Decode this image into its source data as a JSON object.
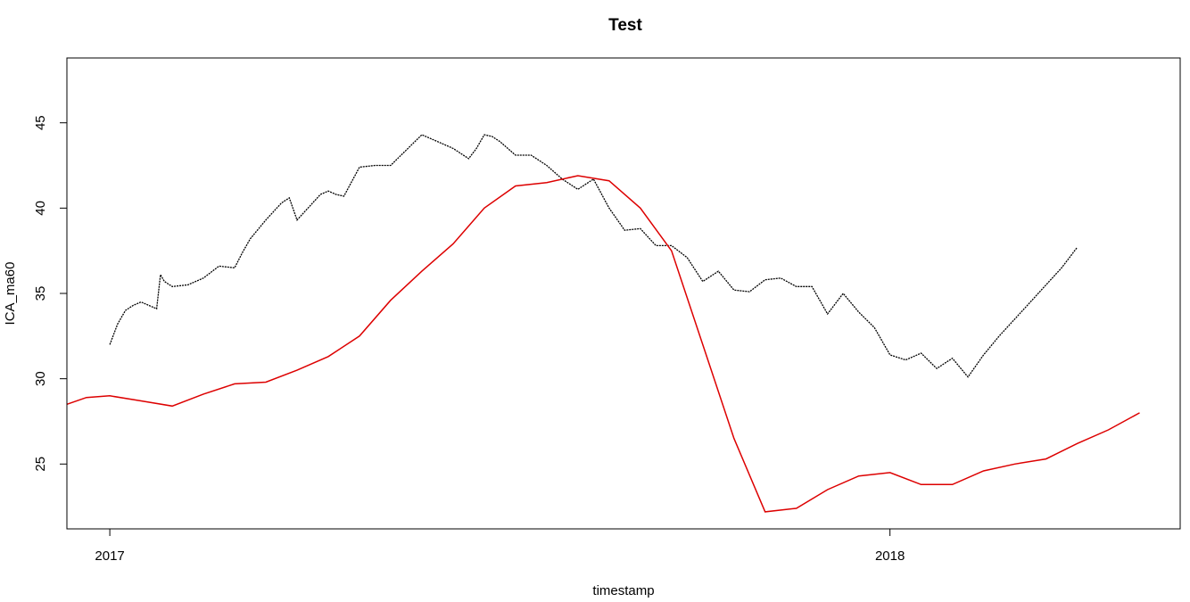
{
  "chart_data": {
    "type": "line",
    "title": "Test",
    "xlabel": "timestamp",
    "ylabel": "ICA_ma60",
    "x_ticks": [
      "2017",
      "2018"
    ],
    "x_tick_values": [
      2017.0,
      2018.0
    ],
    "y_ticks": [
      "25",
      "30",
      "35",
      "40",
      "45"
    ],
    "y_tick_values": [
      25,
      30,
      35,
      40,
      45
    ],
    "xlim": [
      2016.945,
      2018.372
    ],
    "ylim": [
      21.2,
      48.8
    ],
    "grid": false,
    "legend": "none",
    "series": [
      {
        "color": "#000000",
        "style": "dotted",
        "x": [
          2017.0,
          2017.01,
          2017.02,
          2017.03,
          2017.04,
          2017.05,
          2017.06,
          2017.065,
          2017.07,
          2017.08,
          2017.1,
          2017.12,
          2017.14,
          2017.16,
          2017.17,
          2017.18,
          2017.2,
          2017.22,
          2017.23,
          2017.24,
          2017.25,
          2017.26,
          2017.27,
          2017.28,
          2017.29,
          2017.3,
          2017.32,
          2017.34,
          2017.36,
          2017.38,
          2017.4,
          2017.42,
          2017.44,
          2017.46,
          2017.47,
          2017.48,
          2017.49,
          2017.5,
          2017.52,
          2017.54,
          2017.56,
          2017.58,
          2017.6,
          2017.62,
          2017.64,
          2017.66,
          2017.68,
          2017.7,
          2017.72,
          2017.74,
          2017.76,
          2017.78,
          2017.8,
          2017.82,
          2017.84,
          2017.86,
          2017.88,
          2017.9,
          2017.92,
          2017.94,
          2017.96,
          2017.98,
          2018.0,
          2018.02,
          2018.04,
          2018.06,
          2018.08,
          2018.1,
          2018.12,
          2018.14,
          2018.16,
          2018.18,
          2018.2,
          2018.22,
          2018.24
        ],
        "y": [
          32.0,
          33.2,
          34.0,
          34.3,
          34.5,
          34.3,
          34.1,
          36.1,
          35.7,
          35.4,
          35.5,
          35.9,
          36.6,
          36.5,
          37.4,
          38.2,
          39.3,
          40.3,
          40.6,
          39.3,
          39.8,
          40.3,
          40.8,
          41.0,
          40.8,
          40.7,
          42.4,
          42.5,
          42.5,
          43.4,
          44.3,
          43.9,
          43.5,
          42.9,
          43.5,
          44.3,
          44.2,
          43.9,
          43.1,
          43.1,
          42.5,
          41.7,
          41.1,
          41.7,
          40.0,
          38.7,
          38.8,
          37.8,
          37.8,
          37.1,
          35.7,
          36.3,
          35.2,
          35.1,
          35.8,
          35.9,
          35.4,
          35.4,
          33.8,
          35.0,
          33.9,
          33.0,
          31.4,
          31.1,
          31.5,
          30.6,
          31.2,
          30.1,
          31.4,
          32.5,
          33.5,
          34.5,
          35.5,
          36.5,
          37.7
        ]
      },
      {
        "color": "#dd0000",
        "style": "solid",
        "x": [
          2016.945,
          2016.97,
          2017.0,
          2017.04,
          2017.08,
          2017.12,
          2017.16,
          2017.2,
          2017.24,
          2017.28,
          2017.32,
          2017.36,
          2017.4,
          2017.44,
          2017.48,
          2017.52,
          2017.56,
          2017.6,
          2017.64,
          2017.68,
          2017.72,
          2017.76,
          2017.8,
          2017.84,
          2017.88,
          2017.92,
          2017.96,
          2018.0,
          2018.04,
          2018.08,
          2018.12,
          2018.16,
          2018.2,
          2018.24,
          2018.28,
          2018.32
        ],
        "y": [
          28.5,
          28.9,
          29.0,
          28.7,
          28.4,
          29.1,
          29.7,
          29.8,
          30.5,
          31.3,
          32.5,
          34.6,
          36.3,
          37.9,
          40.0,
          41.3,
          41.5,
          41.9,
          41.6,
          40.0,
          37.5,
          32.0,
          26.5,
          22.2,
          22.4,
          23.5,
          24.3,
          24.5,
          23.8,
          23.8,
          24.6,
          25.0,
          25.3,
          26.2,
          27.0,
          28.0
        ]
      }
    ]
  }
}
